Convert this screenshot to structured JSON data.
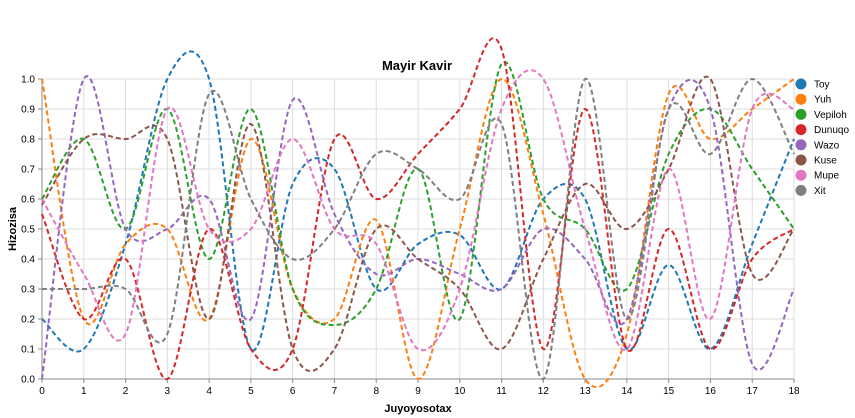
{
  "chart_data": {
    "type": "line",
    "title": "Mayir Kavir",
    "xlabel": "Juyoyosotax",
    "ylabel": "Hizozisa",
    "xlim": [
      0,
      18
    ],
    "ylim": [
      0,
      1
    ],
    "x_ticks": [
      "0",
      "1",
      "2",
      "3",
      "4",
      "5",
      "6",
      "7",
      "8",
      "9",
      "10",
      "11",
      "12",
      "13",
      "14",
      "15",
      "16",
      "17",
      "18"
    ],
    "y_ticks": [
      "0.0",
      "0.1",
      "0.2",
      "0.3",
      "0.4",
      "0.5",
      "0.6",
      "0.7",
      "0.8",
      "0.9",
      "1.0"
    ],
    "grid": true,
    "legend_position": "right",
    "x": [
      0,
      1,
      2,
      3,
      4,
      5,
      6,
      7,
      8,
      9,
      10,
      11,
      12,
      13,
      14,
      15,
      16,
      17,
      18
    ],
    "series": [
      {
        "name": "Toy",
        "color": "#1f77b4",
        "values": [
          0.2,
          0.1,
          0.45,
          1.0,
          1.0,
          0.1,
          0.65,
          0.7,
          0.3,
          0.45,
          0.48,
          0.3,
          0.6,
          0.6,
          0.1,
          0.38,
          0.1,
          0.45,
          0.8
        ]
      },
      {
        "name": "Yuh",
        "color": "#ff7f0e",
        "values": [
          1.0,
          0.2,
          0.45,
          0.5,
          0.2,
          0.8,
          0.3,
          0.2,
          0.53,
          0.0,
          0.5,
          1.0,
          0.55,
          0.0,
          0.15,
          0.95,
          0.8,
          0.9,
          1.0
        ]
      },
      {
        "name": "Vepiloh",
        "color": "#2ca02c",
        "values": [
          0.6,
          0.8,
          0.5,
          0.9,
          0.4,
          0.9,
          0.3,
          0.18,
          0.3,
          0.7,
          0.2,
          1.05,
          0.6,
          0.5,
          0.3,
          0.75,
          0.9,
          0.7,
          0.5
        ]
      },
      {
        "name": "Dunuqo",
        "color": "#d62728",
        "values": [
          0.55,
          0.2,
          0.4,
          0.0,
          0.5,
          0.1,
          0.1,
          0.8,
          0.6,
          0.75,
          0.9,
          1.1,
          0.1,
          0.9,
          0.1,
          0.5,
          0.1,
          0.4,
          0.5
        ]
      },
      {
        "name": "Wazo",
        "color": "#9467bd",
        "values": [
          0.0,
          1.0,
          0.5,
          0.5,
          0.6,
          0.2,
          0.93,
          0.55,
          0.35,
          0.4,
          0.35,
          0.3,
          0.5,
          0.4,
          0.2,
          0.9,
          0.9,
          0.05,
          0.3
        ]
      },
      {
        "name": "Kuse",
        "color": "#8c564b",
        "values": [
          0.58,
          0.8,
          0.8,
          0.8,
          0.2,
          0.85,
          0.1,
          0.1,
          0.5,
          0.4,
          0.3,
          0.1,
          0.4,
          0.65,
          0.5,
          0.7,
          1.0,
          0.35,
          0.5
        ]
      },
      {
        "name": "Mupe",
        "color": "#e377c2",
        "values": [
          0.6,
          0.35,
          0.15,
          0.9,
          0.5,
          0.5,
          0.8,
          0.5,
          0.45,
          0.1,
          0.3,
          0.9,
          1.0,
          0.5,
          0.1,
          0.7,
          0.2,
          0.9,
          0.9
        ]
      },
      {
        "name": "Xit",
        "color": "#7f7f7f",
        "values": [
          0.3,
          0.3,
          0.3,
          0.15,
          0.95,
          0.6,
          0.4,
          0.5,
          0.75,
          0.7,
          0.6,
          0.85,
          0.0,
          1.0,
          0.2,
          0.9,
          0.75,
          1.0,
          0.75
        ]
      }
    ]
  }
}
